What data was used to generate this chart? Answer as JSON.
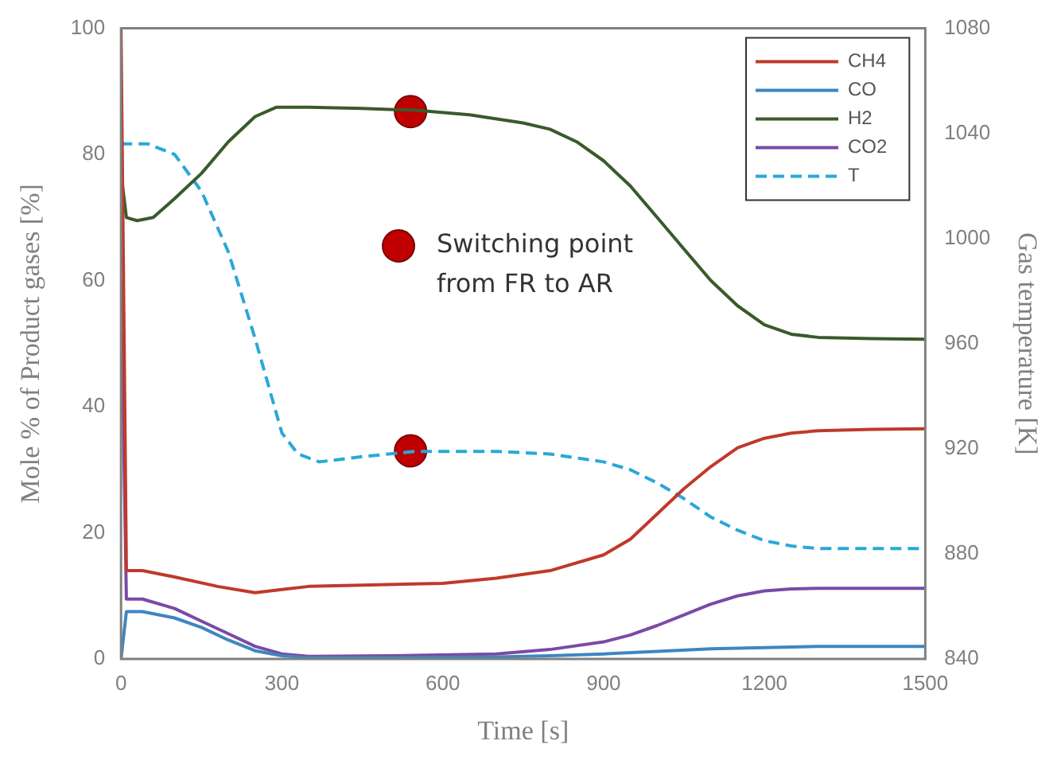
{
  "chart_data": {
    "type": "line",
    "xlabel": "Time [s]",
    "ylabel": "Mole % of Product gases [%]",
    "y2label": "Gas temperature [K]",
    "xlim": [
      0,
      1500
    ],
    "xticks": [
      0,
      300,
      600,
      900,
      1200,
      1500
    ],
    "ylim": [
      0,
      100
    ],
    "yticks": [
      0,
      20,
      40,
      60,
      80,
      100
    ],
    "y2lim": [
      840,
      1080
    ],
    "y2ticks": [
      840,
      880,
      920,
      960,
      1000,
      1040,
      1080
    ],
    "grid": false,
    "legend": "top right",
    "marker": "none",
    "series": [
      {
        "name": "CH4",
        "color": "#c0392b",
        "x": [
          0,
          10,
          40,
          100,
          180,
          250,
          300,
          350,
          450,
          600,
          700,
          800,
          900,
          950,
          1000,
          1050,
          1100,
          1150,
          1200,
          1250,
          1300,
          1400,
          1500
        ],
        "values": [
          100,
          14,
          14,
          13,
          11.5,
          10.5,
          11,
          11.5,
          11.7,
          12,
          12.8,
          14,
          16.5,
          19,
          23,
          27,
          30.5,
          33.5,
          35,
          35.8,
          36.2,
          36.4,
          36.5
        ]
      },
      {
        "name": "CO",
        "color": "#3f86bf",
        "x": [
          0,
          10,
          40,
          100,
          150,
          200,
          250,
          300,
          350,
          500,
          700,
          800,
          900,
          1000,
          1100,
          1200,
          1300,
          1500
        ],
        "values": [
          0,
          7.5,
          7.5,
          6.5,
          5,
          3,
          1.3,
          0.5,
          0.2,
          0.2,
          0.3,
          0.5,
          0.8,
          1.2,
          1.6,
          1.8,
          2,
          2
        ]
      },
      {
        "name": "H2",
        "color": "#3a5a2a",
        "x": [
          0,
          10,
          30,
          60,
          100,
          150,
          200,
          250,
          290,
          350,
          450,
          550,
          650,
          750,
          800,
          850,
          900,
          950,
          1000,
          1050,
          1100,
          1150,
          1200,
          1250,
          1300,
          1400,
          1500
        ],
        "values": [
          77,
          70,
          69.5,
          70,
          73,
          77,
          82,
          86,
          87.5,
          87.5,
          87.3,
          87,
          86.3,
          85,
          84,
          82,
          79,
          75,
          70,
          65,
          60,
          56,
          53,
          51.5,
          51,
          50.8,
          50.7
        ]
      },
      {
        "name": "CO2",
        "color": "#7a4aa6",
        "x": [
          0,
          10,
          40,
          100,
          150,
          200,
          250,
          300,
          350,
          500,
          700,
          800,
          900,
          950,
          1000,
          1050,
          1100,
          1150,
          1200,
          1250,
          1300,
          1400,
          1500
        ],
        "values": [
          60,
          9.5,
          9.5,
          8,
          6,
          4,
          2,
          0.8,
          0.4,
          0.5,
          0.8,
          1.5,
          2.7,
          3.8,
          5.3,
          7,
          8.7,
          10,
          10.8,
          11.1,
          11.2,
          11.2,
          11.2
        ]
      },
      {
        "name": "T",
        "color": "#29a8d8",
        "axis": "y2",
        "line_style": "dashed",
        "x": [
          0,
          50,
          100,
          150,
          200,
          250,
          300,
          330,
          370,
          450,
          550,
          700,
          800,
          900,
          950,
          1000,
          1050,
          1100,
          1150,
          1200,
          1250,
          1300,
          1400,
          1500
        ],
        "values": [
          1036,
          1036,
          1032,
          1018,
          995,
          962,
          926,
          918,
          915,
          917,
          919,
          919,
          918,
          915,
          912,
          907,
          901,
          894,
          889,
          885,
          883,
          882,
          882,
          882
        ]
      },
      {
        "name": "Switching point from FR to AR",
        "type": "scatter",
        "marker": "circle",
        "color": "#c00000",
        "x": [
          540,
          540
        ],
        "values": [
          86.8,
          33
        ]
      }
    ]
  }
}
